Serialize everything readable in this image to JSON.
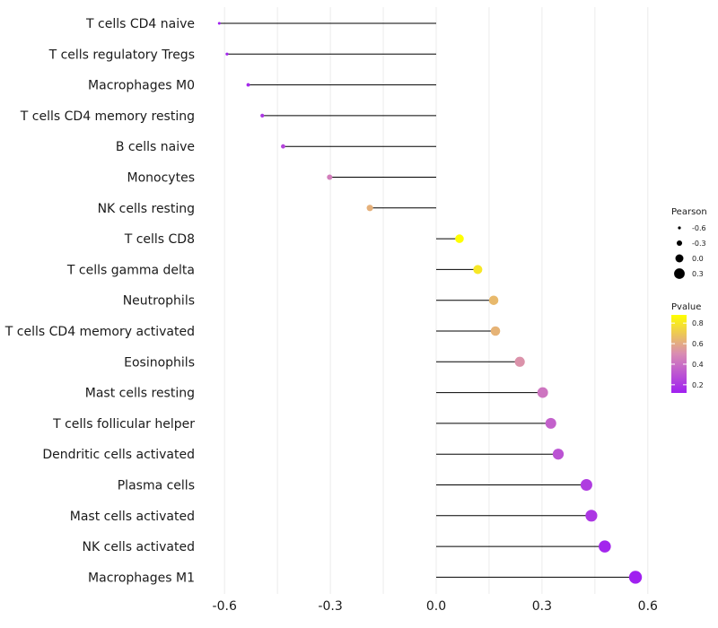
{
  "chart_data": {
    "type": "lollipop",
    "xlabel": "",
    "ylabel": "",
    "xlim": [
      -0.67,
      0.72
    ],
    "xticks": [
      -0.6,
      -0.3,
      0.0,
      0.3,
      0.6
    ],
    "xtick_labels": [
      "-0.6",
      "-0.3",
      "0.0",
      "0.3",
      "0.6"
    ],
    "categories": [
      "T cells CD4 naive",
      "T cells regulatory  Tregs",
      "Macrophages M0",
      "T cells CD4 memory resting",
      "B cells naive",
      "Monocytes",
      "NK cells resting",
      "T cells CD8",
      "T cells gamma delta",
      "Neutrophils",
      "T cells CD4 memory activated",
      "Eosinophils",
      "Mast cells resting",
      "T cells follicular helper",
      "Dendritic cells activated",
      "Plasma cells",
      "Mast cells activated",
      "NK cells activated",
      "Macrophages M1"
    ],
    "pearson": [
      -0.615,
      -0.593,
      -0.533,
      -0.493,
      -0.434,
      -0.302,
      -0.188,
      0.066,
      0.118,
      0.163,
      0.168,
      0.237,
      0.302,
      0.325,
      0.346,
      0.426,
      0.44,
      0.478,
      0.565
    ],
    "pvalue": [
      0.12,
      0.14,
      0.15,
      0.2,
      0.25,
      0.45,
      0.62,
      0.88,
      0.8,
      0.65,
      0.63,
      0.52,
      0.42,
      0.35,
      0.3,
      0.22,
      0.2,
      0.14,
      0.12
    ],
    "legend_size": {
      "title": "Pearson",
      "values": [
        -0.6,
        -0.3,
        0.0,
        0.3
      ],
      "labels": [
        "-0.6",
        "-0.3",
        "0.0",
        "0.3"
      ]
    },
    "legend_color": {
      "title": "Pvalue",
      "range": [
        0.12,
        0.88
      ],
      "ticks": [
        0.2,
        0.4,
        0.6,
        0.8
      ],
      "tick_labels": [
        "0.2",
        "0.4",
        "0.6",
        "0.8"
      ],
      "low_color": "#a020f0",
      "mid_color": "#d98cb3",
      "high_color": "#ffff00"
    }
  }
}
